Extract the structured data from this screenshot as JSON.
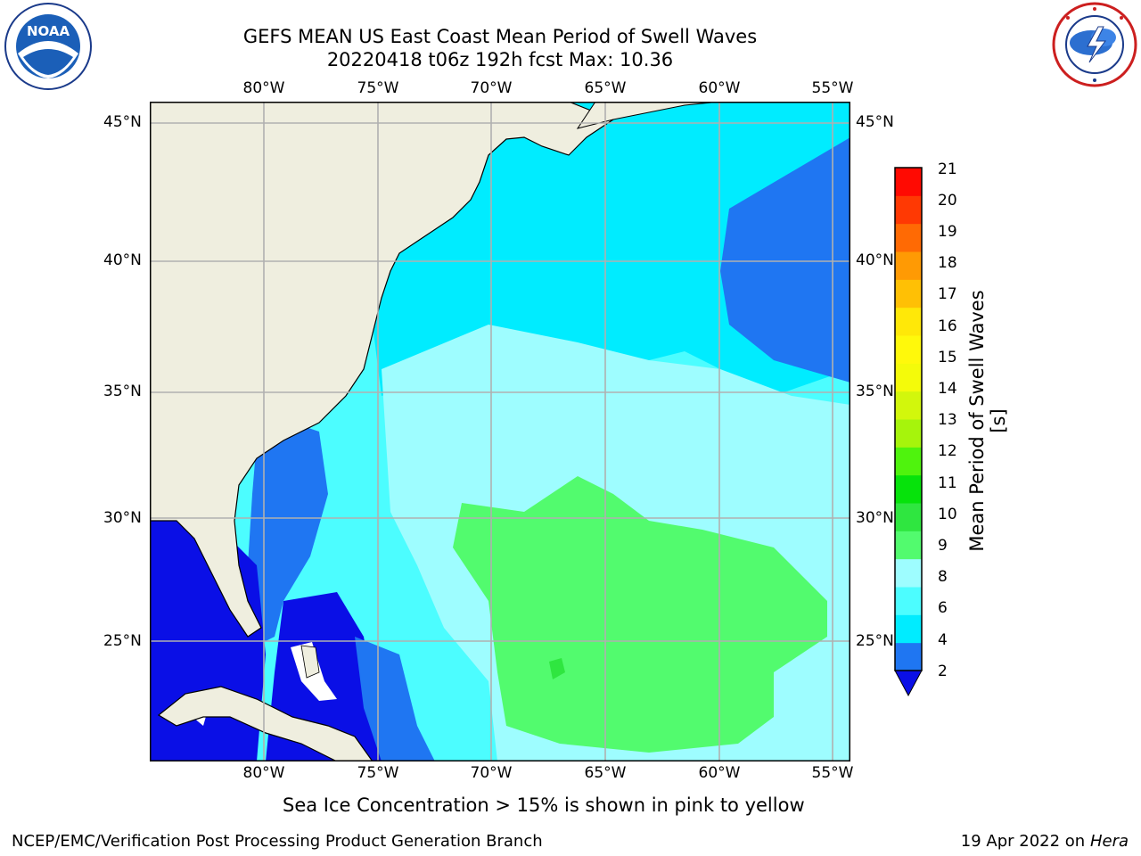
{
  "header": {
    "title_line1": "GEFS MEAN US East Coast Mean Period of Swell Waves",
    "title_line2": "20220418 t06z 192h fcst   Max: 10.36"
  },
  "logos": {
    "left": {
      "icon": "noaa-logo-icon",
      "text": "NOAA",
      "ring_text": "NATIONAL OCEANIC AND ATMOSPHERIC ADMINISTRATION · U.S. DEPARTMENT OF COMMERCE"
    },
    "right": {
      "icon": "nws-logo-icon",
      "ring_text": "NATIONAL WEATHER SERVICE"
    }
  },
  "map": {
    "lon_labels": [
      "80°W",
      "75°W",
      "70°W",
      "65°W",
      "60°W",
      "55°W"
    ],
    "lat_labels": [
      "45°N",
      "40°N",
      "35°N",
      "30°N",
      "25°N"
    ],
    "colors": {
      "land": "#efeedf",
      "ice_white": "#ffffff",
      "deep_blue": "#0a0fe6",
      "blue": "#1f76f2",
      "cyan": "#00ecff",
      "light_cyan": "#4cfdff",
      "pale_cyan": "#9efdff",
      "green": "#52fb6e",
      "dark_green": "#2fe640",
      "grid": "#b0b0b0"
    }
  },
  "colorbar": {
    "label": "Mean Period of Swell Waves [s]",
    "ticks": [
      "21",
      "20",
      "19",
      "18",
      "17",
      "16",
      "15",
      "14",
      "13",
      "12",
      "11",
      "10",
      "9",
      "8",
      "6",
      "4",
      "2"
    ],
    "colors_bottom_to_top": [
      "#1f76f2",
      "#00ecff",
      "#4cfdff",
      "#9efdff",
      "#52fb6e",
      "#2fe640",
      "#06e30b",
      "#4ff30d",
      "#a6f40c",
      "#d2f70c",
      "#f4fb0a",
      "#fff90b",
      "#ffe808",
      "#ffc005",
      "#ff9a04",
      "#ff6a04",
      "#ff3903",
      "#ff0a02"
    ],
    "extend_color": "#0a0fe6"
  },
  "note": "Sea Ice Concentration > 15% is shown in pink to yellow",
  "footer": {
    "left": "NCEP/EMC/Verification Post Processing Product Generation Branch",
    "right_date": "19 Apr 2022 on ",
    "right_machine": "Hera"
  }
}
